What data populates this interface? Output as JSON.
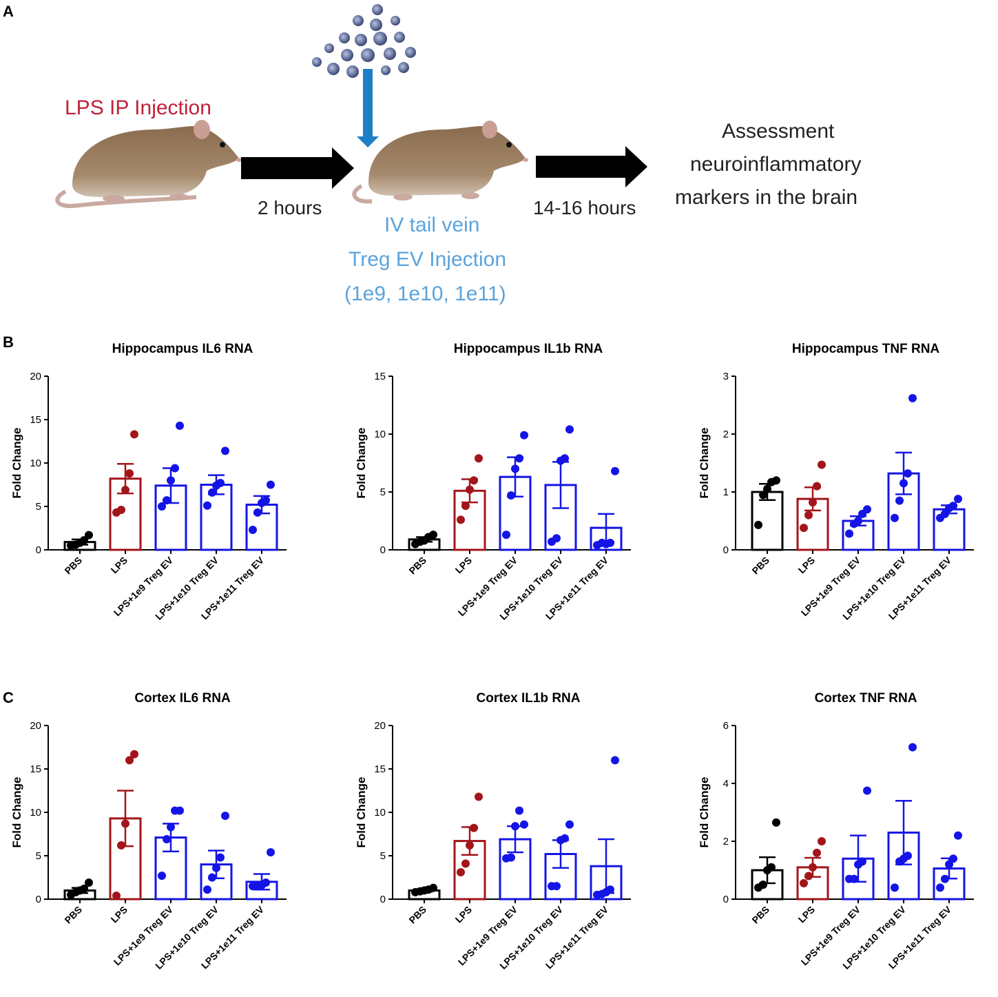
{
  "panels": {
    "A": "A",
    "B": "B",
    "C": "C"
  },
  "schematic": {
    "lps_injection": "LPS IP Injection",
    "time_1": "2 hours",
    "iv_line1": "IV tail vein",
    "iv_line2": "Treg EV Injection",
    "iv_line3": "(1e9, 1e10, 1e11)",
    "time_2": "14-16 hours",
    "assess_line1": "Assessment",
    "assess_line2": "neuroinflammatory",
    "assess_line3": "markers in the brain"
  },
  "colors": {
    "pbs": "#000000",
    "lps": "#a3151a",
    "treg": "#1414e6",
    "lps_text": "#c0213a",
    "iv_text": "#5ba3dc",
    "arrow_blue": "#1f7fc4"
  },
  "chart_data": [
    {
      "type": "bar",
      "title": "Hippocampus IL6 RNA",
      "ylabel": "Fold Change",
      "ylim": [
        0,
        20
      ],
      "yticks": [
        "0",
        "5",
        "10",
        "15",
        "20"
      ],
      "categories": [
        "PBS",
        "LPS",
        "LPS+1e9 Treg EV",
        "LPS+1e10 Treg EV",
        "LPS+1e11 Treg EV"
      ],
      "values": [
        0.9,
        8.2,
        7.4,
        7.5,
        5.2
      ],
      "sem": [
        0.3,
        1.7,
        2.0,
        1.1,
        1.0
      ],
      "points": [
        [
          0.5,
          0.6,
          0.8,
          1.1,
          1.7
        ],
        [
          4.3,
          4.6,
          6.9,
          8.8,
          13.3
        ],
        [
          5.0,
          5.7,
          8.0,
          9.4,
          14.3
        ],
        [
          5.1,
          6.6,
          7.4,
          7.7,
          11.4
        ],
        [
          2.3,
          4.3,
          5.4,
          5.7,
          7.5
        ]
      ]
    },
    {
      "type": "bar",
      "title": "Hippocampus IL1b RNA",
      "ylabel": "Fold Change",
      "ylim": [
        0,
        15
      ],
      "yticks": [
        "0",
        "5",
        "10",
        "15"
      ],
      "categories": [
        "PBS",
        "LPS",
        "LPS+1e9 Treg EV",
        "LPS+1e10 Treg EV",
        "LPS+1e11 Treg EV"
      ],
      "values": [
        0.9,
        5.1,
        6.3,
        5.6,
        1.9
      ],
      "sem": [
        0.2,
        1.0,
        1.7,
        2.0,
        1.2
      ],
      "points": [
        [
          0.5,
          0.7,
          0.8,
          1.1,
          1.3
        ],
        [
          2.6,
          3.8,
          5.2,
          6.0,
          7.9
        ],
        [
          1.3,
          4.7,
          7.0,
          7.9,
          9.9
        ],
        [
          0.7,
          1.0,
          7.7,
          7.9,
          10.4
        ],
        [
          0.4,
          0.6,
          0.5,
          0.6,
          6.8
        ]
      ]
    },
    {
      "type": "bar",
      "title": "Hippocampus TNF RNA",
      "ylabel": "Fold Change",
      "ylim": [
        0,
        3
      ],
      "yticks": [
        "0",
        "1",
        "2",
        "3"
      ],
      "categories": [
        "PBS",
        "LPS",
        "LPS+1e9 Treg EV",
        "LPS+1e10 Treg EV",
        "LPS+1e11 Treg EV"
      ],
      "values": [
        1.0,
        0.88,
        0.5,
        1.32,
        0.7
      ],
      "sem": [
        0.14,
        0.2,
        0.08,
        0.36,
        0.07
      ],
      "points": [
        [
          0.43,
          0.95,
          1.05,
          1.17,
          1.2
        ],
        [
          0.38,
          0.6,
          0.82,
          1.1,
          1.47
        ],
        [
          0.28,
          0.45,
          0.5,
          0.62,
          0.7
        ],
        [
          0.55,
          0.85,
          1.15,
          1.32,
          2.62
        ],
        [
          0.55,
          0.62,
          0.72,
          0.76,
          0.88
        ]
      ]
    },
    {
      "type": "bar",
      "title": "Cortex IL6 RNA",
      "ylabel": "Fold Change",
      "ylim": [
        0,
        20
      ],
      "yticks": [
        "0",
        "5",
        "10",
        "15",
        "20"
      ],
      "categories": [
        "PBS",
        "LPS",
        "LPS+1e9 Treg EV",
        "LPS+1e10 Treg EV",
        "LPS+1e11 Treg EV"
      ],
      "values": [
        1.0,
        9.3,
        7.1,
        4.0,
        2.0
      ],
      "sem": [
        0.3,
        3.2,
        1.6,
        1.6,
        0.9
      ],
      "points": [
        [
          0.5,
          0.8,
          1.0,
          1.2,
          1.9
        ],
        [
          0.4,
          6.2,
          8.7,
          16.0,
          16.7
        ],
        [
          2.7,
          6.9,
          8.3,
          10.2,
          10.2
        ],
        [
          1.1,
          2.5,
          3.6,
          4.8,
          9.6
        ],
        [
          1.5,
          1.6,
          1.6,
          1.9,
          5.4
        ]
      ]
    },
    {
      "type": "bar",
      "title": "Cortex IL1b RNA",
      "ylabel": "Fold Change",
      "ylim": [
        0,
        20
      ],
      "yticks": [
        "0",
        "5",
        "10",
        "15",
        "20"
      ],
      "categories": [
        "PBS",
        "LPS",
        "LPS+1e9 Treg EV",
        "LPS+1e10 Treg EV",
        "LPS+1e11 Treg EV"
      ],
      "values": [
        1.0,
        6.7,
        6.9,
        5.2,
        3.8
      ],
      "sem": [
        0.15,
        1.6,
        1.5,
        1.6,
        3.1
      ],
      "points": [
        [
          0.8,
          0.9,
          1.0,
          1.1,
          1.3
        ],
        [
          3.1,
          4.1,
          6.2,
          8.2,
          11.8
        ],
        [
          4.7,
          4.8,
          8.4,
          10.2,
          8.6
        ],
        [
          1.5,
          1.5,
          6.8,
          7.0,
          8.6
        ],
        [
          0.5,
          0.6,
          0.8,
          1.1,
          16.0
        ]
      ]
    },
    {
      "type": "bar",
      "title": "Cortex TNF RNA",
      "ylabel": "Fold Change",
      "ylim": [
        0,
        6
      ],
      "yticks": [
        "0",
        "2",
        "4",
        "6"
      ],
      "categories": [
        "PBS",
        "LPS",
        "LPS+1e9 Treg EV",
        "LPS+1e10 Treg EV",
        "LPS+1e11 Treg EV"
      ],
      "values": [
        1.0,
        1.1,
        1.4,
        2.3,
        1.06
      ],
      "sem": [
        0.45,
        0.33,
        0.8,
        1.1,
        0.35
      ],
      "points": [
        [
          0.4,
          0.5,
          1.0,
          1.1,
          2.65
        ],
        [
          0.55,
          0.8,
          1.1,
          1.6,
          2.0
        ],
        [
          0.7,
          0.7,
          1.2,
          1.3,
          3.75
        ],
        [
          0.4,
          1.3,
          1.4,
          1.5,
          5.25
        ],
        [
          0.4,
          0.7,
          1.2,
          1.4,
          2.2
        ]
      ]
    }
  ]
}
